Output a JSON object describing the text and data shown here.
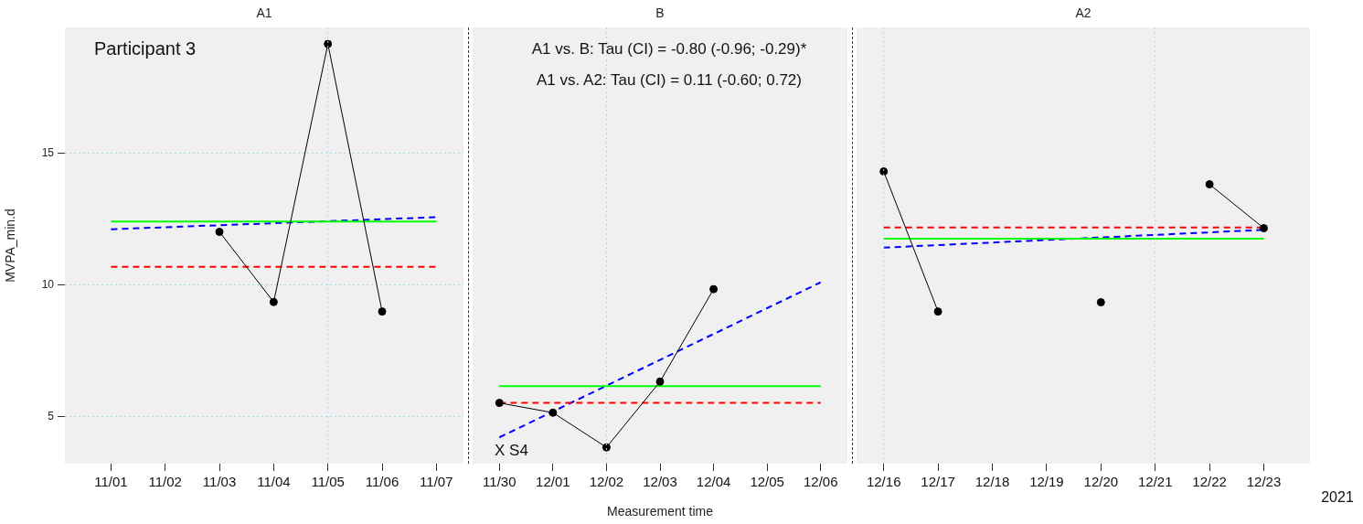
{
  "chart_data": [
    {
      "type": "line",
      "title": "A1",
      "ylabel": "MVPA_min.d",
      "categories": [
        "11/01",
        "11/02",
        "11/03",
        "11/04",
        "11/05",
        "11/06",
        "11/07"
      ],
      "ylim": [
        3.2,
        19.8
      ],
      "yticks": [
        5,
        10,
        15
      ],
      "grid": "y",
      "legend": false,
      "ref_lines": [
        {
          "axis": "x",
          "value": "11/05",
          "color": "#add8e6",
          "line_style": "dotted"
        }
      ],
      "annotations": [
        "Participant 3"
      ],
      "series": [
        {
          "color": "#000000",
          "marker": "circle",
          "line_style": "solid",
          "values": [
            null,
            null,
            12.02,
            9.35,
            19.17,
            8.99,
            null
          ]
        },
        {
          "color": "#00ff00",
          "marker": "none",
          "line_style": "solid",
          "x": [
            "11/01",
            "11/07"
          ],
          "values": [
            12.41,
            12.41
          ]
        },
        {
          "color": "#ff0000",
          "marker": "none",
          "line_style": "dashed",
          "x": [
            "11/01",
            "11/07"
          ],
          "values": [
            10.69,
            10.69
          ]
        },
        {
          "color": "#0000ff",
          "marker": "none",
          "line_style": "dashed",
          "x": [
            "11/01",
            "11/07"
          ],
          "values": [
            12.12,
            12.58
          ]
        }
      ]
    },
    {
      "type": "line",
      "title": "B",
      "xlabel": "Measurement time",
      "categories": [
        "11/30",
        "12/01",
        "12/02",
        "12/03",
        "12/04",
        "12/05",
        "12/06"
      ],
      "ylim": [
        3.2,
        19.8
      ],
      "grid": "y",
      "legend": false,
      "tick_labels": "x",
      "ref_lines": [
        {
          "axis": "x",
          "value": "12/02",
          "color": "#add8e6",
          "line_style": "dotted"
        }
      ],
      "annotations": [
        "A1 vs. B: Tau (CI) = -0.80 (-0.96; -0.29)*",
        "A1 vs. A2: Tau (CI) = 0.11 (-0.60; 0.72)",
        "X S4"
      ],
      "series": [
        {
          "color": "#000000",
          "marker": "circle",
          "line_style": "solid",
          "values": [
            5.51,
            5.14,
            3.82,
            6.32,
            9.84,
            null,
            null
          ]
        },
        {
          "color": "#00ff00",
          "marker": "none",
          "line_style": "solid",
          "x": [
            "11/30",
            "12/06"
          ],
          "values": [
            6.15,
            6.15
          ]
        },
        {
          "color": "#ff0000",
          "marker": "none",
          "line_style": "dashed",
          "x": [
            "11/30",
            "12/06"
          ],
          "values": [
            5.51,
            5.51
          ]
        },
        {
          "color": "#0000ff",
          "marker": "none",
          "line_style": "dashed",
          "x": [
            "11/30",
            "12/06"
          ],
          "values": [
            4.2,
            10.1
          ]
        }
      ]
    },
    {
      "type": "line",
      "title": "A2",
      "categories": [
        "12/16",
        "12/17",
        "12/18",
        "12/19",
        "12/20",
        "12/21",
        "12/22",
        "12/23"
      ],
      "ylim": [
        3.2,
        19.8
      ],
      "grid": "y",
      "legend": false,
      "tick_labels": "x",
      "ref_lines": [
        {
          "axis": "x",
          "value": "12/16",
          "color": "#add8e6",
          "line_style": "dotted"
        },
        {
          "axis": "x",
          "value": "12/21",
          "color": "#add8e6",
          "line_style": "dotted"
        }
      ],
      "annotations": [
        "2021"
      ],
      "series": [
        {
          "color": "#000000",
          "marker": "circle",
          "line_style": "solid",
          "values": [
            14.32,
            8.99,
            null,
            null,
            9.34,
            null,
            13.83,
            12.16
          ]
        },
        {
          "color": "#00ff00",
          "marker": "none",
          "line_style": "solid",
          "x": [
            "12/16",
            "12/23"
          ],
          "values": [
            11.76,
            11.76
          ]
        },
        {
          "color": "#ff0000",
          "marker": "none",
          "line_style": "dashed",
          "x": [
            "12/16",
            "12/23"
          ],
          "values": [
            12.19,
            12.19
          ]
        },
        {
          "color": "#0000ff",
          "marker": "none",
          "line_style": "dashed",
          "x": [
            "12/16",
            "12/23"
          ],
          "values": [
            11.42,
            12.1
          ]
        }
      ]
    }
  ]
}
